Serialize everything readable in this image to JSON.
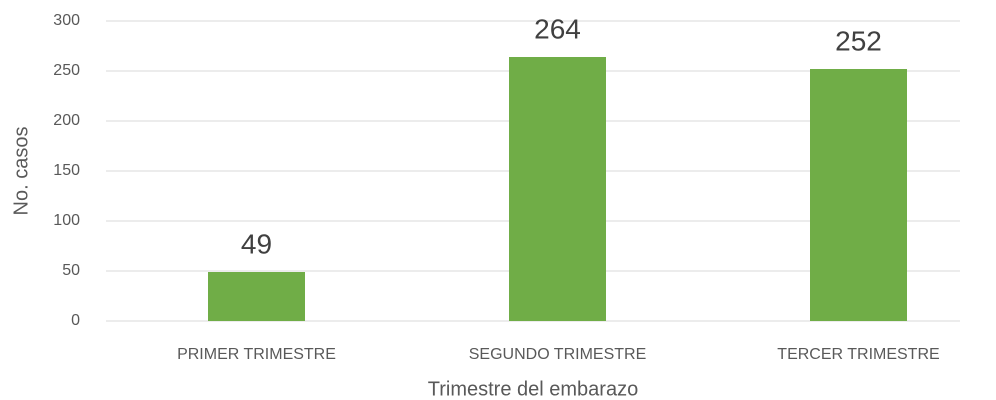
{
  "chart_data": {
    "type": "bar",
    "categories": [
      "PRIMER TRIMESTRE",
      "SEGUNDO TRIMESTRE",
      "TERCER TRIMESTRE"
    ],
    "values": [
      49,
      264,
      252
    ],
    "color": "#70ad47",
    "ylim": [
      0,
      300
    ],
    "yticks": [
      0,
      50,
      100,
      150,
      200,
      250,
      300
    ],
    "grid": true,
    "x_label": "Trimestre del embarazo",
    "y_label": "No. casos"
  }
}
